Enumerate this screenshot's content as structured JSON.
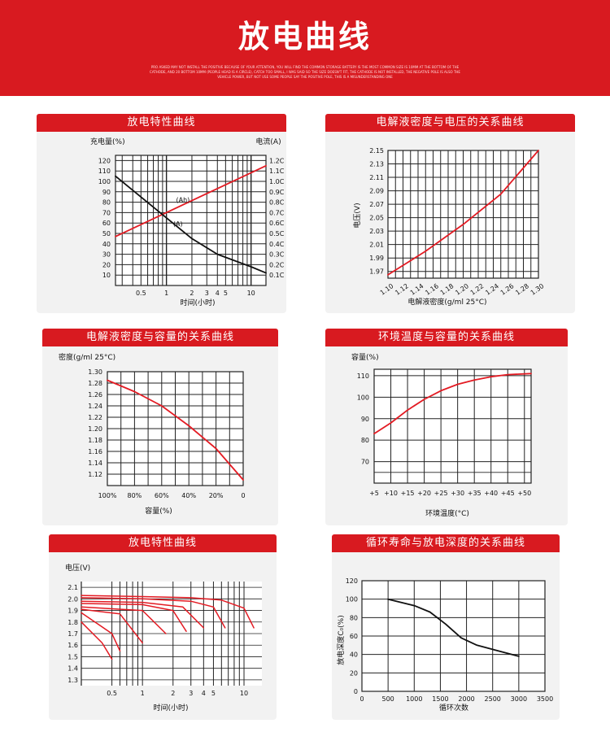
{
  "header": {
    "title": "放电曲线",
    "fine_print": "PRO ASKED MAY NOT INSTALL THE POSITIVE BECAUSE OF YOUR ATTENTION, YOU WILL FIND THE COMMON STORAGE BATTERY IS THE MOST COMMON SIZE IS 10MM AT THE BOTTOM OF THE CATHODE, AND 20 BOTTOM 10MM (PEOPLE HEAD IS A CIRCLE), CATCH TOO SMALL, I WAS SAID SO THE SIZE DOESN'T FIT, THE CATHODE IS NOT INSTALLED, THE NEGATIVE POLE IS ALSO THE VEHICLE POWER, BUT NOT USE SOME PEOPLE SAY THE POSITIVE POLE, THIS IS A MISUNDERSTANDING ONE"
  },
  "colors": {
    "accent": "#d81a20",
    "panel_bg": "#f2f2f2",
    "curve_red": "#e31b23",
    "curve_black": "#111111"
  },
  "chart_data": [
    {
      "type": "line",
      "title": "放电特性曲线",
      "xlabel": "时间(小时)",
      "ylabel_left": "充电量(%)",
      "ylabel_right": "电流(A)",
      "x_scale": "log",
      "x_ticks": [
        "0.5",
        "1",
        "2",
        "3",
        "4",
        "5",
        "10"
      ],
      "y_left_ticks": [
        "120",
        "110",
        "100",
        "90",
        "80",
        "70",
        "60",
        "50",
        "40",
        "30",
        "20",
        "10"
      ],
      "y_right_ticks": [
        "1.2C",
        "1.1C",
        "1.0C",
        "0.9C",
        "0.8C",
        "0.7C",
        "0.6C",
        "0.5C",
        "0.4C",
        "0.3C",
        "0.2C",
        "0.1C"
      ],
      "series": [
        {
          "name": "(Ah)",
          "color": "#e31b23",
          "points": [
            [
              0.25,
              47
            ],
            [
              15,
              115
            ]
          ]
        },
        {
          "name": "(A)",
          "color": "#111111",
          "points": [
            [
              0.25,
              105
            ],
            [
              0.5,
              85
            ],
            [
              1,
              65
            ],
            [
              2,
              45
            ],
            [
              4,
              30
            ],
            [
              10,
              18
            ],
            [
              15,
              12
            ]
          ]
        }
      ]
    },
    {
      "type": "line",
      "title": "电解液密度与电压的关系曲线",
      "xlabel": "电解液密度(g/ml 25°C)",
      "ylabel": "电压(V)",
      "x_ticks": [
        "1.10",
        "1.12",
        "1.14",
        "1.16",
        "1.18",
        "1.20",
        "1.22",
        "1.24",
        "1.26",
        "1.28",
        "1.30"
      ],
      "y_ticks": [
        "2.15",
        "2.13",
        "2.11",
        "2.09",
        "2.07",
        "2.05",
        "2.03",
        "2.01",
        "1.99",
        "1.97"
      ],
      "xlim": [
        1.1,
        1.3
      ],
      "ylim": [
        1.96,
        2.15
      ],
      "series": [
        {
          "color": "#e31b23",
          "points": [
            [
              1.1,
              1.965
            ],
            [
              1.15,
              2.0
            ],
            [
              1.2,
              2.04
            ],
            [
              1.25,
              2.085
            ],
            [
              1.3,
              2.15
            ]
          ]
        }
      ]
    },
    {
      "type": "line",
      "title": "电解液密度与容量的关系曲线",
      "xlabel": "容量(%)",
      "ylabel": "密度(g/ml 25°C)",
      "x_ticks": [
        "100%",
        "80%",
        "60%",
        "40%",
        "20%",
        "0"
      ],
      "y_ticks": [
        "1.30",
        "1.28",
        "1.26",
        "1.24",
        "1.22",
        "1.20",
        "1.18",
        "1.16",
        "1.14",
        "1.12"
      ],
      "xlim": [
        100,
        0
      ],
      "ylim": [
        1.1,
        1.3
      ],
      "series": [
        {
          "color": "#e31b23",
          "points": [
            [
              100,
              1.285
            ],
            [
              80,
              1.265
            ],
            [
              60,
              1.24
            ],
            [
              40,
              1.205
            ],
            [
              20,
              1.165
            ],
            [
              0,
              1.11
            ]
          ]
        }
      ]
    },
    {
      "type": "line",
      "title": "环境温度与容量的关系曲线",
      "xlabel": "环境温度(°C)",
      "ylabel": "容量(%)",
      "x_ticks": [
        "+5",
        "+10",
        "+15",
        "+20",
        "+25",
        "+30",
        "+35",
        "+40",
        "+45",
        "+50"
      ],
      "y_ticks": [
        "110",
        "100",
        "90",
        "80",
        "70"
      ],
      "xlim": [
        5,
        52
      ],
      "ylim": [
        60,
        113
      ],
      "series": [
        {
          "color": "#e31b23",
          "points": [
            [
              5,
              83
            ],
            [
              10,
              88
            ],
            [
              15,
              94
            ],
            [
              20,
              99
            ],
            [
              25,
              103
            ],
            [
              30,
              106
            ],
            [
              35,
              108
            ],
            [
              40,
              109.5
            ],
            [
              45,
              110.5
            ],
            [
              52,
              111
            ]
          ]
        }
      ]
    },
    {
      "type": "line",
      "title": "放电特性曲线",
      "xlabel": "时间(小时)",
      "ylabel": "电压(V)",
      "x_scale": "log",
      "x_ticks": [
        "0.5",
        "1",
        "2",
        "3",
        "4",
        "5",
        "10"
      ],
      "y_ticks": [
        "2.1",
        "2.0",
        "1.9",
        "1.8",
        "1.7",
        "1.6",
        "1.5",
        "1.4",
        "1.3"
      ],
      "ylim": [
        1.25,
        2.15
      ],
      "series": [
        {
          "color": "#e31b23",
          "points": [
            [
              0.25,
              2.03
            ],
            [
              1,
              2.02
            ],
            [
              3,
              2.01
            ],
            [
              6,
              1.99
            ],
            [
              10,
              1.92
            ],
            [
              12.5,
              1.75
            ]
          ]
        },
        {
          "color": "#e31b23",
          "points": [
            [
              0.25,
              2.01
            ],
            [
              1,
              2.0
            ],
            [
              3,
              1.98
            ],
            [
              5,
              1.93
            ],
            [
              6.5,
              1.75
            ]
          ]
        },
        {
          "color": "#e31b23",
          "points": [
            [
              0.25,
              1.98
            ],
            [
              1,
              1.97
            ],
            [
              2.5,
              1.93
            ],
            [
              4,
              1.75
            ]
          ]
        },
        {
          "color": "#e31b23",
          "points": [
            [
              0.25,
              1.96
            ],
            [
              1,
              1.95
            ],
            [
              2,
              1.9
            ],
            [
              2.7,
              1.72
            ]
          ]
        },
        {
          "color": "#e31b23",
          "points": [
            [
              0.25,
              1.93
            ],
            [
              1,
              1.9
            ],
            [
              1.7,
              1.7
            ]
          ]
        },
        {
          "color": "#e31b23",
          "points": [
            [
              0.25,
              1.91
            ],
            [
              0.6,
              1.87
            ],
            [
              1,
              1.62
            ]
          ]
        },
        {
          "color": "#e31b23",
          "points": [
            [
              0.25,
              1.88
            ],
            [
              0.5,
              1.7
            ],
            [
              0.6,
              1.55
            ]
          ]
        },
        {
          "color": "#e31b23",
          "points": [
            [
              0.25,
              1.8
            ],
            [
              0.4,
              1.62
            ],
            [
              0.5,
              1.48
            ]
          ]
        }
      ]
    },
    {
      "type": "line",
      "title": "循环寿命与放电深度的关系曲线",
      "xlabel": "循环次数",
      "ylabel": "放电深度C₀(%)",
      "x_ticks": [
        "0",
        "500",
        "1000",
        "1500",
        "2000",
        "2500",
        "3000",
        "3500"
      ],
      "y_ticks": [
        "120",
        "100",
        "80",
        "60",
        "40",
        "20",
        "0"
      ],
      "xlim": [
        0,
        3500
      ],
      "ylim": [
        0,
        120
      ],
      "series": [
        {
          "color": "#111111",
          "points": [
            [
              500,
              100
            ],
            [
              1000,
              93
            ],
            [
              1300,
              86
            ],
            [
              1600,
              73
            ],
            [
              1900,
              58
            ],
            [
              2200,
              50
            ],
            [
              2600,
              44
            ],
            [
              3000,
              38
            ]
          ]
        }
      ]
    }
  ]
}
